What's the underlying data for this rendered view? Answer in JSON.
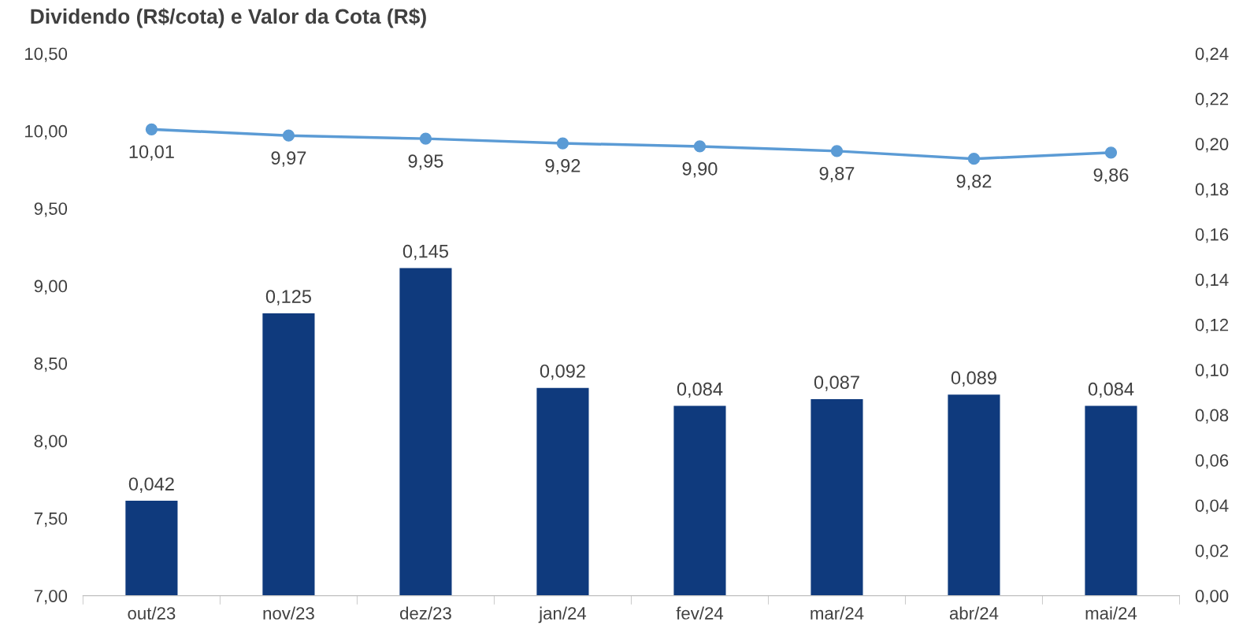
{
  "chart_data": {
    "type": "bar",
    "title": "Dividendo (R$/cota) e Valor da Cota (R$)",
    "categories": [
      "out/23",
      "nov/23",
      "dez/23",
      "jan/24",
      "fev/24",
      "mar/24",
      "abr/24",
      "mai/24"
    ],
    "series": [
      {
        "axis": "y2",
        "color": "#0f3a7d",
        "values": [
          0.042,
          0.125,
          0.145,
          0.092,
          0.084,
          0.087,
          0.089,
          0.084
        ],
        "value_labels": [
          "0,042",
          "0,125",
          "0,145",
          "0,092",
          "0,084",
          "0,087",
          "0,089",
          "0,084"
        ]
      },
      {
        "type": "line",
        "axis": "y",
        "color": "#5b9bd5",
        "marker": "circle",
        "values": [
          10.01,
          9.97,
          9.95,
          9.92,
          9.9,
          9.87,
          9.82,
          9.86
        ],
        "value_labels": [
          "10,01",
          "9,97",
          "9,95",
          "9,92",
          "9,90",
          "9,87",
          "9,82",
          "9,86"
        ]
      }
    ],
    "ylim": [
      7.0,
      10.5
    ],
    "yticks": [
      {
        "value": 7.0,
        "label": "7,00"
      },
      {
        "value": 7.5,
        "label": "7,50"
      },
      {
        "value": 8.0,
        "label": "8,00"
      },
      {
        "value": 8.5,
        "label": "8,50"
      },
      {
        "value": 9.0,
        "label": "9,00"
      },
      {
        "value": 9.5,
        "label": "9,50"
      },
      {
        "value": 10.0,
        "label": "10,00"
      },
      {
        "value": 10.5,
        "label": "10,50"
      }
    ],
    "y2lim": [
      0,
      0.24
    ],
    "y2ticks": [
      {
        "value": 0,
        "label": "0,00"
      },
      {
        "value": 0.02,
        "label": "0,02"
      },
      {
        "value": 0.04,
        "label": "0,04"
      },
      {
        "value": 0.06,
        "label": "0,06"
      },
      {
        "value": 0.08,
        "label": "0,08"
      },
      {
        "value": 0.1,
        "label": "0,10"
      },
      {
        "value": 0.12,
        "label": "0,12"
      },
      {
        "value": 0.14,
        "label": "0,14"
      },
      {
        "value": 0.16,
        "label": "0,16"
      },
      {
        "value": 0.18,
        "label": "0,18"
      },
      {
        "value": 0.2,
        "label": "0,20"
      },
      {
        "value": 0.22,
        "label": "0,22"
      },
      {
        "value": 0.24,
        "label": "0,24"
      }
    ],
    "grid": false,
    "legend": false
  }
}
